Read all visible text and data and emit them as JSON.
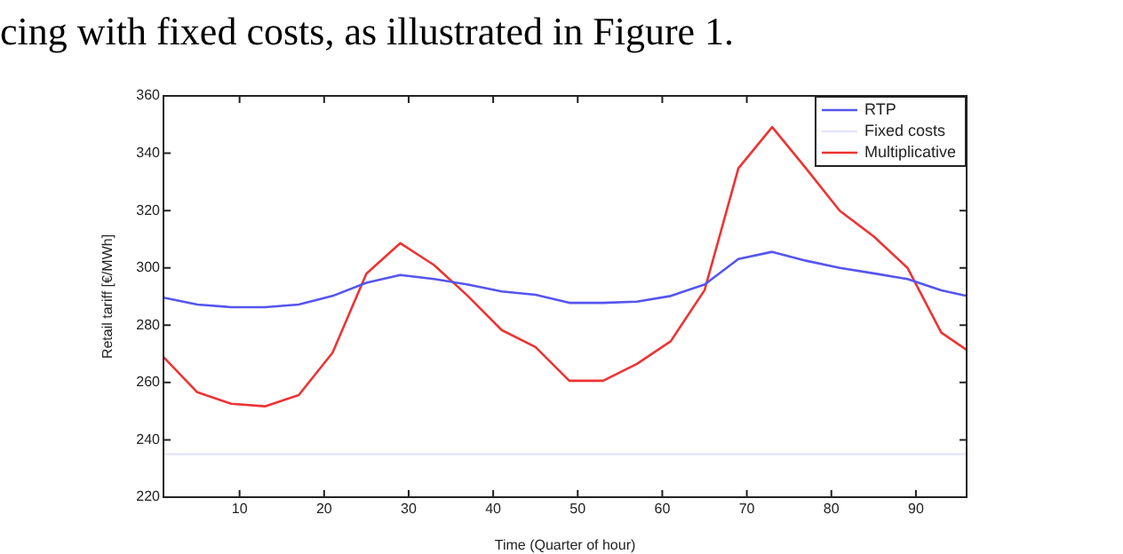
{
  "chart_data": {
    "type": "line",
    "xlabel": "Time (Quarter of hour)",
    "ylabel": "Retail tariff [€/MWh]",
    "annotations": [
      "cing with fixed costs, as illustrated in Figure 1."
    ],
    "xlim": [
      1,
      96
    ],
    "xticks": [
      10,
      20,
      30,
      40,
      50,
      60,
      70,
      80,
      90
    ],
    "ylim": [
      220,
      360
    ],
    "yticks": [
      220,
      240,
      260,
      280,
      300,
      320,
      340,
      360
    ],
    "grid": false,
    "legend": "top right",
    "marker": "none",
    "x": [
      1,
      5,
      9,
      13,
      17,
      21,
      25,
      29,
      33,
      37,
      41,
      45,
      49,
      53,
      57,
      61,
      65,
      69,
      73,
      77,
      81,
      85,
      89,
      93,
      96
    ],
    "series": [
      {
        "name": "RTP",
        "color": "#5555ee",
        "values": [
          289.6,
          287.2,
          286.3,
          286.3,
          287.2,
          290.2,
          294.8,
          297.5,
          296.1,
          294.2,
          291.8,
          290.6,
          287.8,
          287.8,
          288.2,
          290.2,
          294.2,
          303.1,
          305.6,
          302.5,
          300,
          298.1,
          296.1,
          292.2,
          290.2
        ]
      },
      {
        "name": "Fixed costs",
        "color": "#e4e4fa",
        "values": [
          235,
          235,
          235,
          235,
          235,
          235,
          235,
          235,
          235,
          235,
          235,
          235,
          235,
          235,
          235,
          235,
          235,
          235,
          235,
          235,
          235,
          235,
          235,
          235,
          235
        ]
      },
      {
        "name": "Multiplicative",
        "color": "#ee3333",
        "values": [
          268.9,
          256.6,
          252.6,
          251.7,
          255.6,
          270.4,
          298,
          308.6,
          301,
          290.2,
          278.3,
          272.4,
          260.6,
          260.6,
          266.5,
          274.4,
          292.2,
          334.7,
          349.1,
          334.7,
          319.9,
          311,
          300,
          277.4,
          271.4
        ]
      }
    ]
  }
}
